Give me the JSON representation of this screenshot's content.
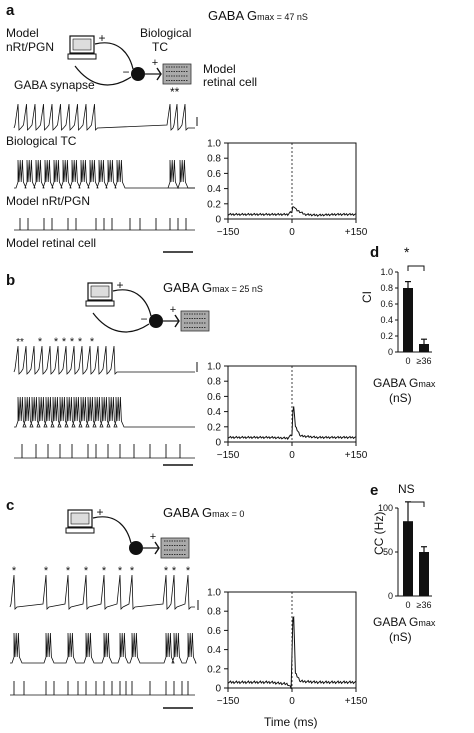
{
  "panels": {
    "a": {
      "letter": "a",
      "gaba_title": "GABA G",
      "gaba_value": "max = 47 nS"
    },
    "b": {
      "letter": "b",
      "gaba_title": "GABA G",
      "gaba_value": "max = 25 nS"
    },
    "c": {
      "letter": "c",
      "gaba_title": "GABA G",
      "gaba_value": "max = 0"
    },
    "d": {
      "letter": "d"
    },
    "e": {
      "letter": "e"
    }
  },
  "schematic": {
    "model_nrt": "Model",
    "model_nrt2": "nRt/PGN",
    "biological": "Biological",
    "tc": "TC",
    "model_retinal": "Model",
    "retinal_cell": "retinal cell",
    "gaba_synapse": "GABA synapse",
    "plus": "+",
    "minus": "−"
  },
  "traces": {
    "biological_tc": "Biological TC",
    "model_nrt_pgn": "Model nRt/PGN",
    "model_retinal_cell": "Model retinal cell",
    "stars_a": "**",
    "star": "*"
  },
  "charts": {
    "ccg_ticks_y": [
      "1.0",
      "0.8",
      "0.6",
      "0.4",
      "0.2",
      "0"
    ],
    "ccg_ticks_x": [
      "−150",
      "0",
      "+150"
    ],
    "time_label": "Time (ms)"
  },
  "chart_data": [
    {
      "type": "line",
      "panel": "a",
      "xlim": [
        -150,
        150
      ],
      "ylim": [
        0,
        1.0
      ],
      "x": [
        -150,
        -100,
        -50,
        -10,
        0,
        3,
        10,
        30,
        60,
        100,
        150
      ],
      "y": [
        0.06,
        0.06,
        0.06,
        0.06,
        0.1,
        0.18,
        0.12,
        0.06,
        0.05,
        0.06,
        0.06
      ]
    },
    {
      "type": "line",
      "panel": "b",
      "xlim": [
        -150,
        150
      ],
      "ylim": [
        0,
        1.0
      ],
      "x": [
        -150,
        -100,
        -50,
        -10,
        0,
        3,
        8,
        20,
        60,
        100,
        150
      ],
      "y": [
        0.06,
        0.06,
        0.06,
        0.05,
        0.1,
        0.55,
        0.2,
        0.08,
        0.06,
        0.06,
        0.06
      ]
    },
    {
      "type": "line",
      "panel": "c",
      "xlim": [
        -150,
        150
      ],
      "ylim": [
        0,
        1.0
      ],
      "x": [
        -150,
        -100,
        -50,
        -10,
        -2,
        3,
        8,
        20,
        60,
        100,
        150
      ],
      "y": [
        0.06,
        0.06,
        0.06,
        0.04,
        0.0,
        0.9,
        0.15,
        0.07,
        0.06,
        0.06,
        0.06
      ]
    },
    {
      "type": "bar",
      "panel": "d",
      "categories": [
        "0",
        "≥36"
      ],
      "values": [
        0.8,
        0.1
      ],
      "errors": [
        0.08,
        0.06
      ],
      "ylabel": "CI",
      "ylim": [
        0,
        1.0
      ],
      "yticks": [
        "1.0",
        "0.8",
        "0.6",
        "0.4",
        "0.2",
        "0"
      ],
      "xlabel": "GABA G",
      "xlabel_sub": "max",
      "xlabel_unit": "(nS)",
      "significance": "*"
    },
    {
      "type": "bar",
      "panel": "e",
      "categories": [
        "0",
        "≥36"
      ],
      "values": [
        85,
        50
      ],
      "errors": [
        22,
        6
      ],
      "ylabel": "CC (Hz)",
      "ylim": [
        0,
        100
      ],
      "yticks": [
        "100",
        "50",
        "0"
      ],
      "xlabel": "GABA G",
      "xlabel_sub": "max",
      "xlabel_unit": "(nS)",
      "significance": "NS"
    }
  ]
}
